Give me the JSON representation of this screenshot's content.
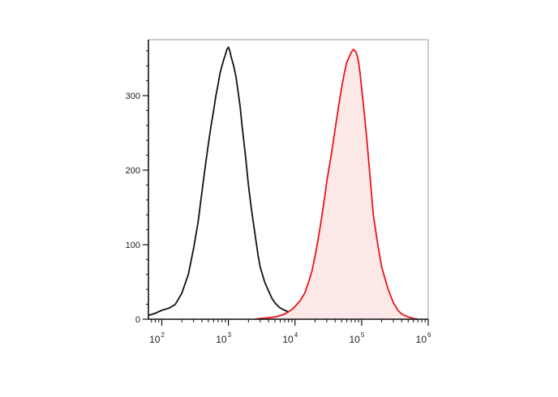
{
  "chart_data": {
    "type": "area",
    "title": "",
    "xlabel": "",
    "ylabel": "",
    "x_scale": "log",
    "xlim": [
      63,
      1000000
    ],
    "ylim": [
      0,
      375
    ],
    "grid": false,
    "legend": "none",
    "x_ticks": [
      {
        "base": "10",
        "exp": "2",
        "value": 100
      },
      {
        "base": "10",
        "exp": "3",
        "value": 1000
      },
      {
        "base": "10",
        "exp": "4",
        "value": 10000
      },
      {
        "base": "10",
        "exp": "5",
        "value": 100000
      },
      {
        "base": "10",
        "exp": "6",
        "value": 1000000
      }
    ],
    "y_ticks": [
      "0",
      "100",
      "200",
      "300"
    ],
    "y_tick_values": [
      0,
      100,
      200,
      300
    ],
    "series": [
      {
        "color": "#111111",
        "filled": false,
        "x": [
          63,
          80,
          100,
          130,
          160,
          200,
          250,
          300,
          350,
          400,
          450,
          500,
          550,
          600,
          650,
          700,
          750,
          800,
          850,
          900,
          950,
          1000,
          1050,
          1100,
          1200,
          1300,
          1400,
          1500,
          1600,
          1800,
          2000,
          2200,
          2500,
          2800,
          3000,
          3500,
          4000,
          4500,
          5000,
          5500,
          6000,
          7000,
          8000,
          9000,
          10000,
          11000,
          12000,
          14000,
          16000,
          18000,
          20000,
          25000,
          30000
        ],
        "values": [
          5,
          8,
          12,
          15,
          20,
          35,
          60,
          95,
          130,
          170,
          205,
          235,
          260,
          280,
          300,
          315,
          330,
          340,
          348,
          355,
          362,
          365,
          360,
          352,
          340,
          325,
          305,
          285,
          260,
          220,
          180,
          150,
          115,
          85,
          70,
          50,
          38,
          28,
          22,
          18,
          15,
          12,
          10,
          8,
          6,
          5,
          4,
          3,
          3,
          2,
          2,
          1,
          1
        ]
      },
      {
        "color": "#e8141b",
        "fill": "#fde8e8",
        "filled": true,
        "x": [
          2500,
          3000,
          4000,
          5000,
          6000,
          7000,
          8000,
          9000,
          10000,
          12000,
          14000,
          16000,
          18000,
          20000,
          22000,
          25000,
          28000,
          30000,
          35000,
          40000,
          45000,
          50000,
          55000,
          60000,
          65000,
          70000,
          75000,
          80000,
          85000,
          90000,
          95000,
          100000,
          110000,
          120000,
          130000,
          140000,
          150000,
          175000,
          200000,
          250000,
          300000,
          350000,
          400000,
          500000,
          600000,
          700000
        ],
        "values": [
          0,
          1,
          2,
          3,
          5,
          7,
          10,
          13,
          17,
          25,
          35,
          50,
          65,
          85,
          105,
          135,
          165,
          185,
          220,
          255,
          285,
          310,
          330,
          345,
          352,
          358,
          362,
          360,
          355,
          345,
          330,
          310,
          275,
          240,
          205,
          170,
          140,
          100,
          70,
          40,
          22,
          12,
          7,
          3,
          1,
          0
        ]
      }
    ]
  }
}
